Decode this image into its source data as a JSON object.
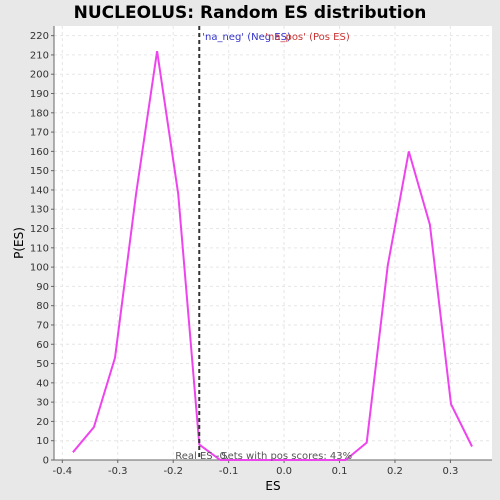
{
  "chart_data": {
    "type": "line",
    "title": "NUCLEOLUS: Random ES distribution",
    "xlabel": "ES",
    "ylabel": "P(ES)",
    "xlim": [
      -0.415,
      0.375
    ],
    "ylim": [
      0,
      225
    ],
    "x_ticks": [
      -0.4,
      -0.3,
      -0.2,
      -0.1,
      0.0,
      0.1,
      0.2,
      0.3
    ],
    "x_tick_labels": [
      "-0.4",
      "-0.3",
      "-0.2",
      "-0.1",
      "0.0",
      "0.1",
      "0.2",
      "0.3"
    ],
    "y_ticks": [
      0,
      10,
      20,
      30,
      40,
      50,
      60,
      70,
      80,
      90,
      100,
      110,
      120,
      130,
      140,
      150,
      160,
      170,
      180,
      190,
      200,
      210,
      220
    ],
    "grid": true,
    "series": [
      {
        "color": "#ee44ee",
        "x": [
          -0.381,
          -0.343,
          -0.305,
          -0.267,
          -0.229,
          -0.191,
          -0.153,
          -0.115,
          -0.077,
          0.111,
          0.149,
          0.187,
          0.225,
          0.263,
          0.301,
          0.339
        ],
        "y": [
          4,
          17,
          53,
          138,
          212,
          138,
          8,
          0,
          0,
          0,
          9,
          101,
          160,
          122,
          29,
          7
        ]
      }
    ],
    "real_es": -0.153,
    "annotations": {
      "real_es_label": "Real ES -0.",
      "pos_scores_label": "Sets with pos scores: 43%"
    },
    "legend": {
      "neg": "'na_neg' (Neg ES)",
      "pos": "'na_pos' (Pos ES)",
      "neg_color": "#3333cc",
      "pos_color": "#cc3333"
    },
    "colors": {
      "background": "#e8e8e8",
      "plot_bg": "#ffffff",
      "grid": "#e6e6e6",
      "line": "#ee44ee",
      "marker_line": "#333333"
    }
  }
}
